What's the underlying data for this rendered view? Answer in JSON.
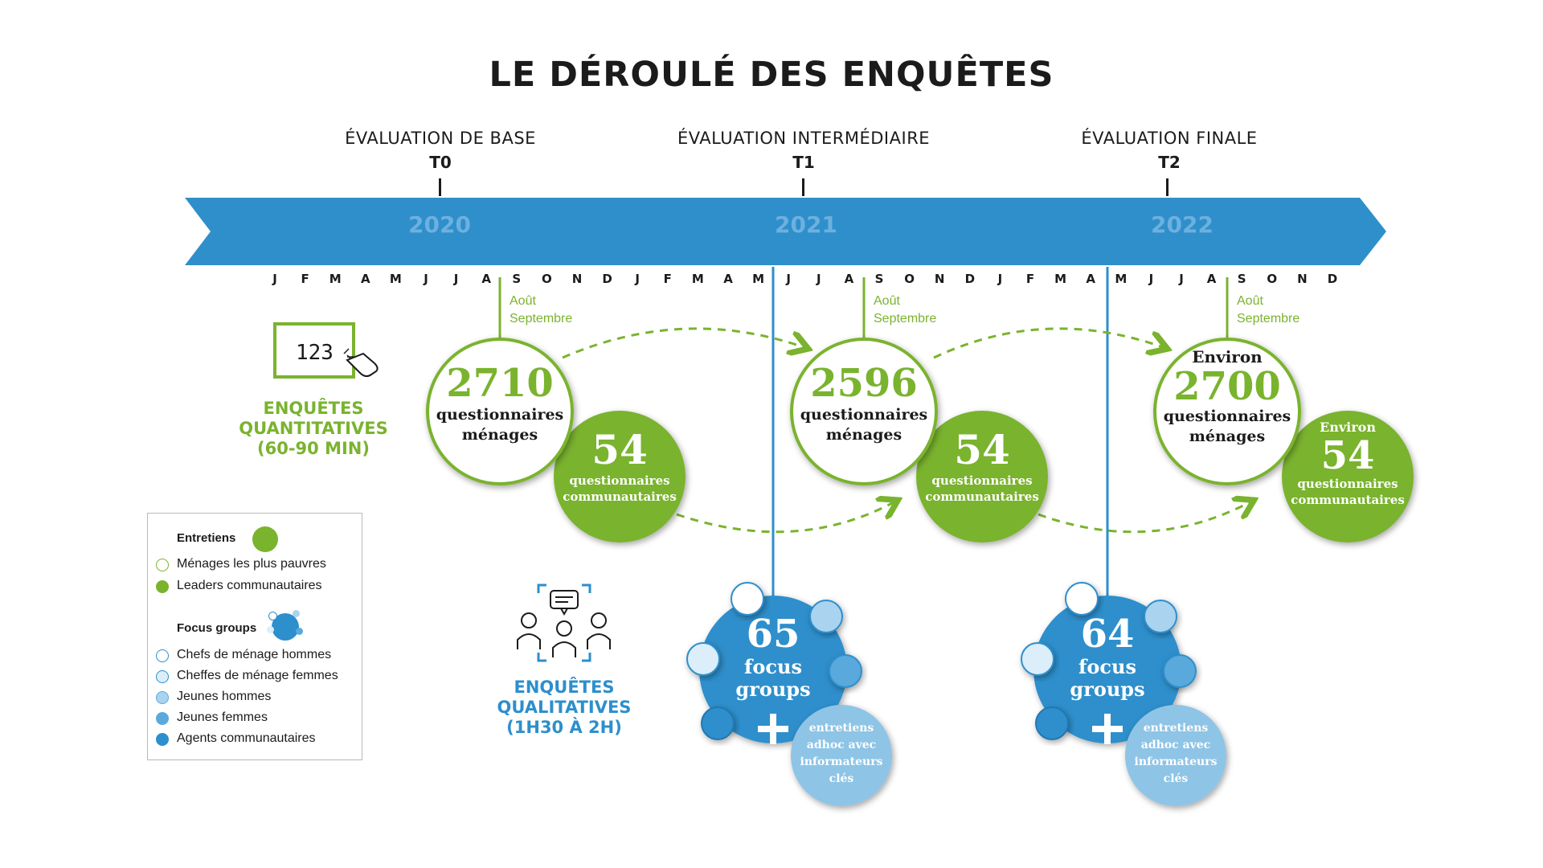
{
  "title": "LE DÉROULÉ DES ENQUÊTES",
  "phases": [
    {
      "name": "ÉVALUATION DE BASE",
      "code": "T0"
    },
    {
      "name": "ÉVALUATION INTERMÉDIAIRE",
      "code": "T1"
    },
    {
      "name": "ÉVALUATION FINALE",
      "code": "T2"
    }
  ],
  "timeline": {
    "years": [
      "2020",
      "2021",
      "2022"
    ],
    "months": [
      "J",
      "F",
      "M",
      "A",
      "M",
      "J",
      "J",
      "A",
      "S",
      "O",
      "N",
      "D",
      "J",
      "F",
      "M",
      "A",
      "M",
      "J",
      "J",
      "A",
      "S",
      "O",
      "N",
      "D",
      "J",
      "F",
      "M",
      "A",
      "M",
      "J",
      "J",
      "A",
      "S",
      "O",
      "N",
      "D"
    ]
  },
  "survey_period": {
    "line1": "Août",
    "line2": "Septembre"
  },
  "quantitative": {
    "label": [
      "ENQUÊTES",
      "QUANTITATIVES",
      "(60-90 MIN)"
    ],
    "icon_text": "123"
  },
  "qualitative": {
    "label": [
      "ENQUÊTES",
      "QUALITATIVES",
      "(1H30 À 2H)"
    ]
  },
  "household": [
    {
      "prefix": "",
      "value": "2710",
      "line1": "questionnaires",
      "line2": "ménages"
    },
    {
      "prefix": "",
      "value": "2596",
      "line1": "questionnaires",
      "line2": "ménages"
    },
    {
      "prefix": "Environ",
      "value": "2700",
      "line1": "questionnaires",
      "line2": "ménages"
    }
  ],
  "community": [
    {
      "prefix": "",
      "value": "54",
      "line1": "questionnaires",
      "line2": "communautaires"
    },
    {
      "prefix": "",
      "value": "54",
      "line1": "questionnaires",
      "line2": "communautaires"
    },
    {
      "prefix": "Environ",
      "value": "54",
      "line1": "questionnaires",
      "line2": "communautaires"
    }
  ],
  "focus": [
    {
      "value": "65",
      "line1": "focus",
      "line2": "groups"
    },
    {
      "value": "64",
      "line1": "focus",
      "line2": "groups"
    }
  ],
  "adhoc": {
    "lines": [
      "entretiens",
      "adhoc avec",
      "informateurs",
      "clés"
    ]
  },
  "legend": {
    "interviews_head": "Entretiens",
    "interviews": [
      "Ménages les plus pauvres",
      "Leaders communautaires"
    ],
    "focus_head": "Focus groups",
    "focus": [
      "Chefs de ménage hommes",
      "Cheffes de ménage femmes",
      "Jeunes hommes",
      "Jeunes femmes",
      "Agents communautaires"
    ]
  },
  "colors": {
    "green": "#7ab32e",
    "blue": "#2d8fcc",
    "arrow": "#2e8fcb",
    "light_blue": "#8ec4e6",
    "pale_blue": "#dbeef9"
  }
}
